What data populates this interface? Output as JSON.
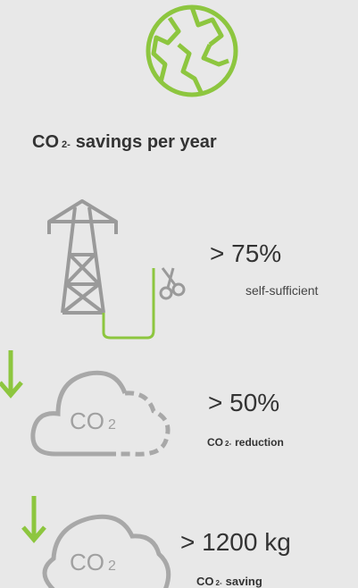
{
  "heading": {
    "text": "CO",
    "sub": "2-",
    "rest": "savings per year"
  },
  "items": [
    {
      "value": "> 75%",
      "label": "self-sufficient"
    },
    {
      "value": "> 50%",
      "label": {
        "text": "CO",
        "sub": "2-",
        "rest": "reduction"
      },
      "icon": {
        "text": "CO",
        "sub": "2"
      }
    },
    {
      "value": "> 1200 kg",
      "label": {
        "text": "CO",
        "sub": "2-",
        "rest": "saving"
      },
      "icon": {
        "text": "CO",
        "sub": "2"
      }
    }
  ]
}
